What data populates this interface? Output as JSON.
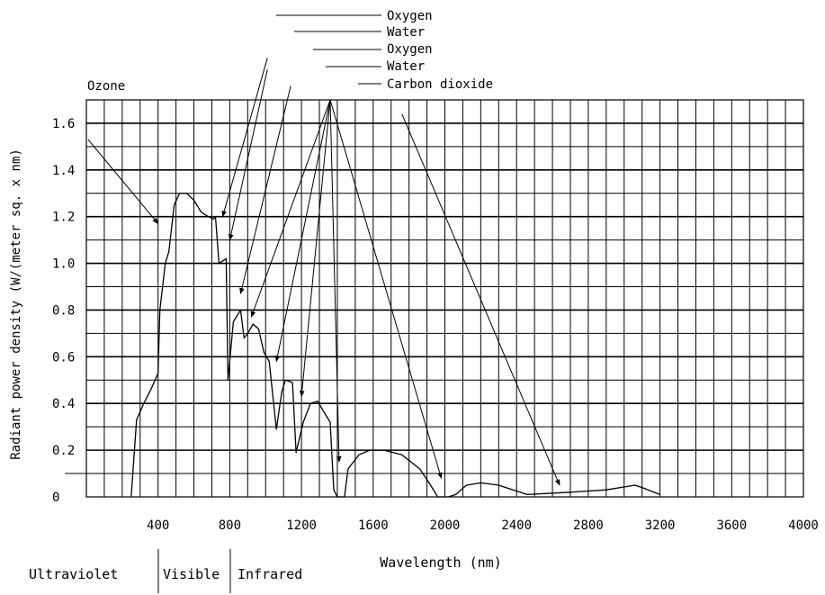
{
  "chart_data": {
    "type": "line",
    "title": "",
    "xlabel": "Wavelength (nm)",
    "ylabel": "Radiant power density (W/(meter sq. x nm)",
    "xlim": [
      0,
      4000
    ],
    "ylim": [
      0,
      1.7
    ],
    "grid": true,
    "x_ticks": [
      "400",
      "800",
      "1200",
      "1600",
      "2000",
      "2400",
      "2800",
      "3200",
      "3600",
      "4000"
    ],
    "y_ticks": [
      "0",
      "0.2",
      "0.4",
      "0.6",
      "0.8",
      "1.0",
      "1.2",
      "1.4",
      "1.6"
    ],
    "series": [
      {
        "points": [
          [
            250,
            0
          ],
          [
            280,
            0.33
          ],
          [
            320,
            0.4
          ],
          [
            360,
            0.46
          ],
          [
            400,
            0.53
          ],
          [
            410,
            0.8
          ],
          [
            440,
            1.0
          ],
          [
            460,
            1.05
          ],
          [
            490,
            1.25
          ],
          [
            520,
            1.3
          ],
          [
            560,
            1.3
          ],
          [
            600,
            1.27
          ],
          [
            640,
            1.22
          ],
          [
            680,
            1.2
          ],
          [
            710,
            1.19
          ],
          [
            720,
            1.2
          ],
          [
            740,
            1.0
          ],
          [
            780,
            1.02
          ],
          [
            790,
            0.5
          ],
          [
            820,
            0.75
          ],
          [
            860,
            0.8
          ],
          [
            880,
            0.68
          ],
          [
            900,
            0.7
          ],
          [
            930,
            0.74
          ],
          [
            960,
            0.72
          ],
          [
            990,
            0.62
          ],
          [
            1020,
            0.58
          ],
          [
            1060,
            0.29
          ],
          [
            1090,
            0.45
          ],
          [
            1110,
            0.5
          ],
          [
            1150,
            0.49
          ],
          [
            1170,
            0.19
          ],
          [
            1210,
            0.32
          ],
          [
            1250,
            0.4
          ],
          [
            1290,
            0.41
          ],
          [
            1320,
            0.37
          ],
          [
            1360,
            0.32
          ],
          [
            1380,
            0.03
          ],
          [
            1400,
            0.0
          ],
          [
            1440,
            0.0
          ],
          [
            1460,
            0.12
          ],
          [
            1520,
            0.18
          ],
          [
            1580,
            0.2
          ],
          [
            1660,
            0.2
          ],
          [
            1760,
            0.18
          ],
          [
            1860,
            0.12
          ],
          [
            1920,
            0.05
          ],
          [
            1960,
            0.0
          ],
          [
            2020,
            0.0
          ],
          [
            2060,
            0.01
          ],
          [
            2120,
            0.05
          ],
          [
            2200,
            0.06
          ],
          [
            2300,
            0.05
          ],
          [
            2380,
            0.03
          ],
          [
            2460,
            0.01
          ],
          [
            2700,
            0.02
          ],
          [
            2900,
            0.03
          ],
          [
            3060,
            0.05
          ],
          [
            3100,
            0.04
          ],
          [
            3200,
            0.01
          ]
        ]
      }
    ],
    "annotations": [
      {
        "label": "Ozone",
        "from": [
          10,
          1.53
        ],
        "to": [
          400,
          1.17
        ]
      },
      {
        "label": "Oxygen",
        "from": [
          1010,
          1.88
        ],
        "to": [
          760,
          1.2
        ]
      },
      {
        "label": "Water",
        "from": [
          1010,
          1.83
        ],
        "to": [
          800,
          1.1
        ]
      },
      {
        "label": "Oxygen",
        "from": [
          1140,
          1.76
        ],
        "to": [
          860,
          0.87
        ]
      },
      {
        "label": "Water",
        "from": [
          1360,
          1.7
        ],
        "to": [
          920,
          0.77
        ]
      },
      {
        "label": "",
        "from": [
          1360,
          1.7
        ],
        "to": [
          1060,
          0.58
        ]
      },
      {
        "label": "",
        "from": [
          1360,
          1.7
        ],
        "to": [
          1200,
          0.43
        ]
      },
      {
        "label": "",
        "from": [
          1360,
          1.7
        ],
        "to": [
          1410,
          0.15
        ]
      },
      {
        "label": "",
        "from": [
          1360,
          1.7
        ],
        "to": [
          1980,
          0.08
        ]
      },
      {
        "label": "Carbon dioxide",
        "from": [
          1760,
          1.64
        ],
        "to": [
          2640,
          0.05
        ]
      }
    ]
  },
  "legend_labels": [
    {
      "text": "Oxygen"
    },
    {
      "text": "Water"
    },
    {
      "text": "Oxygen"
    },
    {
      "text": "Water"
    },
    {
      "text": "Carbon dioxide"
    }
  ],
  "ozone_label": "Ozone",
  "regions": [
    "Ultraviolet",
    "Visible",
    "Infrared"
  ],
  "colors": {
    "line": "#000000",
    "grid": "#000000",
    "background": "#ffffff"
  }
}
